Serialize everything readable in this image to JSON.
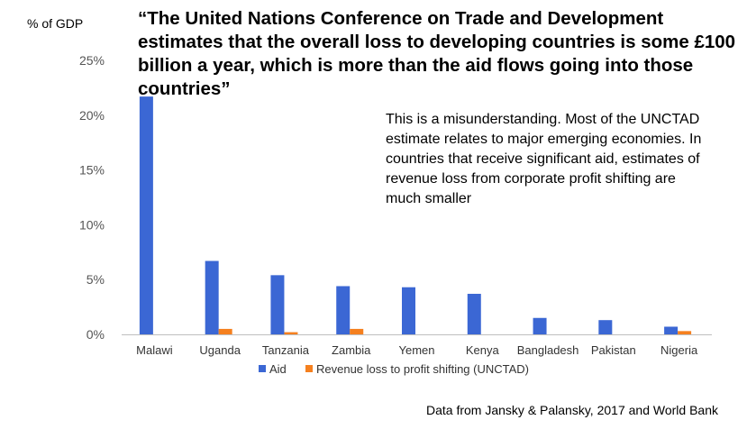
{
  "chart_data": {
    "type": "bar",
    "title": "“The United Nations Conference on Trade and Development estimates that the overall loss to developing countries is some £100 billion a year, which is more than the aid flows going into those countries”",
    "ylabel": "% of GDP",
    "xlabel": "",
    "ylim": [
      0,
      25
    ],
    "yticks": [
      "0%",
      "5%",
      "10%",
      "15%",
      "20%",
      "25%"
    ],
    "ytick_values": [
      0,
      5,
      10,
      15,
      20,
      25
    ],
    "grid": false,
    "legend_position": "bottom",
    "categories": [
      "Malawi",
      "Uganda",
      "Tanzania",
      "Zambia",
      "Yemen",
      "Kenya",
      "Bangladesh",
      "Pakistan",
      "Nigeria"
    ],
    "series": [
      {
        "name": "Aid",
        "color": "#3b67d4",
        "values": [
          21.7,
          6.7,
          5.4,
          4.4,
          4.3,
          3.7,
          1.5,
          1.3,
          0.7
        ]
      },
      {
        "name": "Revenue loss to profit shifting (UNCTAD)",
        "color": "#f5801f",
        "values": [
          null,
          0.5,
          0.2,
          0.5,
          null,
          null,
          null,
          null,
          0.3
        ]
      }
    ],
    "annotation": "This is a misunderstanding. Most of the UNCTAD estimate relates to major emerging economies. In countries that receive significant aid, estimates of revenue loss from corporate profit shifting are much smaller",
    "source": "Data from Jansky & Palansky, 2017 and World Bank"
  }
}
